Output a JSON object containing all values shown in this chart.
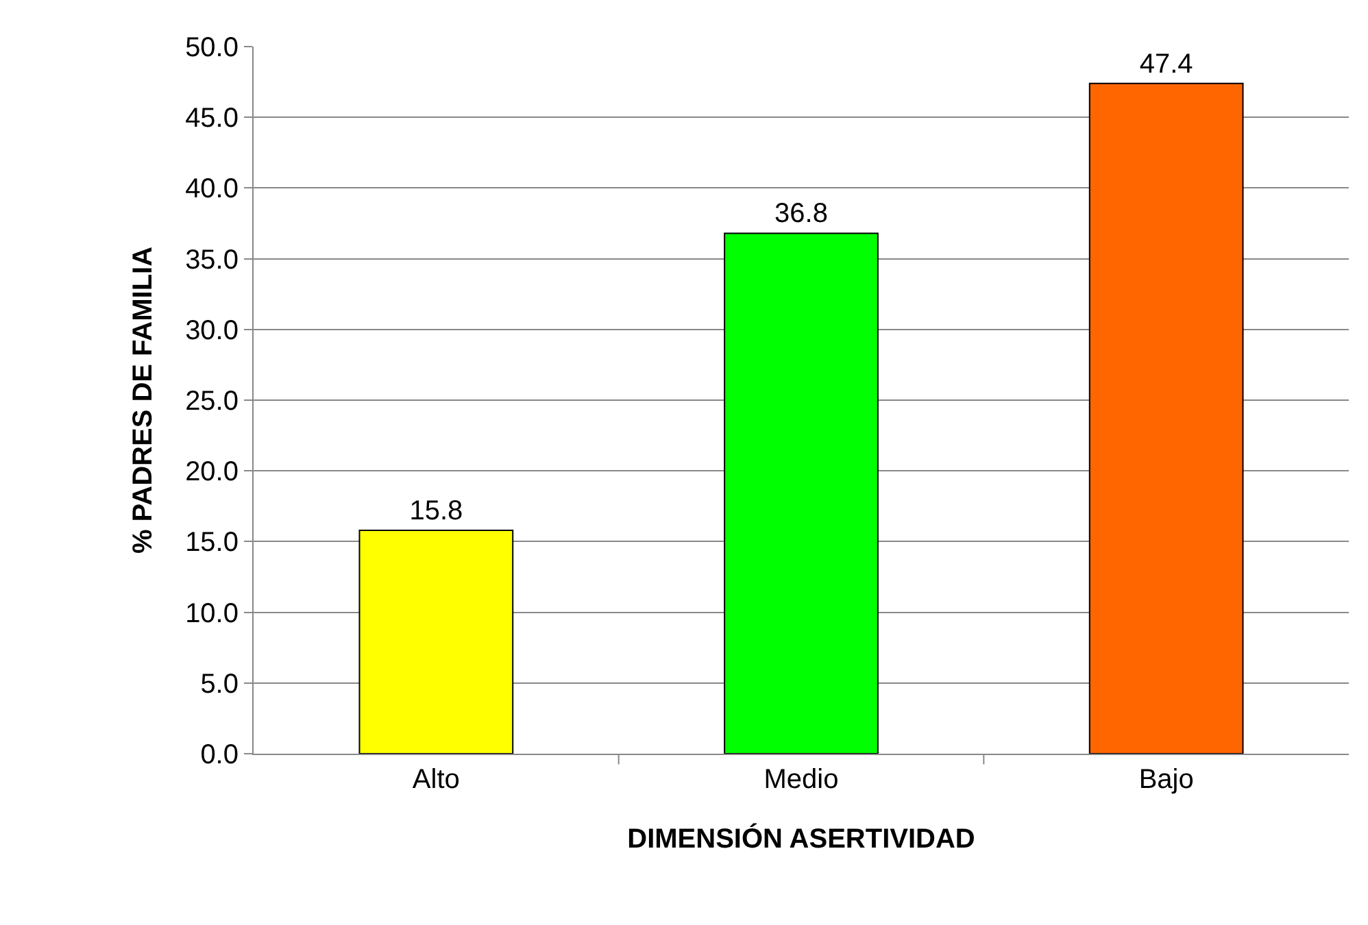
{
  "chart_data": {
    "type": "bar",
    "xlabel": "DIMENSIÓN ASERTIVIDAD",
    "ylabel": "% PADRES DE FAMILIA",
    "categories": [
      "Alto",
      "Medio",
      "Bajo"
    ],
    "values": [
      15.8,
      36.8,
      47.4
    ],
    "colors": [
      "#ffff00",
      "#00ff00",
      "#ff6600"
    ],
    "ylim": [
      0,
      50
    ],
    "yticks": [
      {
        "value": 0,
        "label": "0.0"
      },
      {
        "value": 5,
        "label": "5.0"
      },
      {
        "value": 10,
        "label": "10.0"
      },
      {
        "value": 15,
        "label": "15.0"
      },
      {
        "value": 20,
        "label": "20.0"
      },
      {
        "value": 25,
        "label": "25.0"
      },
      {
        "value": 30,
        "label": "30.0"
      },
      {
        "value": 35,
        "label": "35.0"
      },
      {
        "value": 40,
        "label": "40.0"
      },
      {
        "value": 45,
        "label": "45.0"
      },
      {
        "value": 50,
        "label": "50.0"
      }
    ],
    "grid": "y",
    "data_labels": true
  }
}
